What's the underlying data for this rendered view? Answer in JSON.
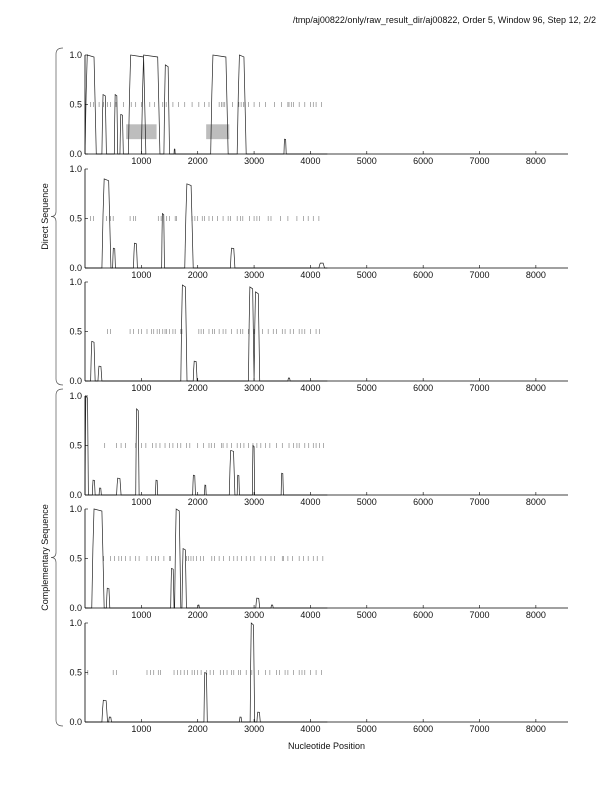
{
  "header": "/tmp/aj00822/only/raw_result_dir/aj00822, Order 5, Window 96, Step 12, 2/2",
  "chart_data": {
    "type": "line",
    "xlabel": "Nucleotide Position",
    "xlim": [
      0,
      8570
    ],
    "ylim": [
      0,
      1
    ],
    "x_ticks": [
      "1000",
      "2000",
      "3000",
      "4000",
      "5000",
      "6000",
      "7000",
      "8000"
    ],
    "y_ticks": [
      "0.0",
      "0.5",
      "1.0"
    ],
    "groups": [
      {
        "label": "Direct Sequence",
        "panels": [
          0,
          1,
          2
        ]
      },
      {
        "label": "Complementary Sequence",
        "panels": [
          3,
          4,
          5
        ]
      }
    ],
    "panels": [
      {
        "name": "direct-frame-1",
        "peaks": [
          [
            0,
            200,
            1.0
          ],
          [
            300,
            380,
            0.6
          ],
          [
            520,
            580,
            0.6
          ],
          [
            620,
            680,
            0.4
          ],
          [
            770,
            1080,
            1.0
          ],
          [
            1000,
            1330,
            1.0
          ],
          [
            1400,
            1500,
            0.9
          ],
          [
            1580,
            1600,
            0.05
          ],
          [
            2230,
            2540,
            1.0
          ],
          [
            2700,
            2860,
            1.0
          ],
          [
            3530,
            3570,
            0.15
          ]
        ],
        "stops": [
          100,
          150,
          250,
          330,
          400,
          450,
          550,
          680,
          820,
          900,
          1000,
          1150,
          1230,
          1380,
          1440,
          1560,
          1660,
          1770,
          1900,
          2020,
          2120,
          2200,
          2380,
          2420,
          2450,
          2480,
          2620,
          2730,
          2770,
          2810,
          2840,
          2900,
          3000,
          3100,
          3200,
          3360,
          3490,
          3600,
          3620,
          3660,
          3700,
          3800,
          3900,
          4000,
          4050,
          4100,
          4200
        ],
        "boxes": [
          [
            730,
            1270,
            0.15,
            0.3
          ],
          [
            2150,
            2560,
            0.15,
            0.3
          ]
        ]
      },
      {
        "name": "direct-frame-2",
        "peaks": [
          [
            300,
            460,
            0.9
          ],
          [
            490,
            540,
            0.2
          ],
          [
            860,
            930,
            0.25
          ],
          [
            1360,
            1410,
            0.55
          ],
          [
            1770,
            1920,
            0.85
          ],
          [
            2580,
            2660,
            0.2
          ],
          [
            4150,
            4250,
            0.05
          ]
        ],
        "stops": [
          100,
          150,
          380,
          450,
          500,
          800,
          860,
          900,
          1300,
          1350,
          1450,
          1500,
          1600,
          1620,
          1900,
          1950,
          2000,
          2080,
          2120,
          2200,
          2260,
          2350,
          2450,
          2540,
          2580,
          2700,
          2760,
          2800,
          2920,
          3000,
          3050,
          3100,
          3250,
          3300,
          3470,
          3600,
          3760,
          3880,
          3960,
          4050,
          4150
        ]
      },
      {
        "name": "direct-frame-3",
        "peaks": [
          [
            100,
            180,
            0.4
          ],
          [
            230,
            300,
            0.15
          ],
          [
            1700,
            1810,
            0.97
          ],
          [
            1920,
            1990,
            0.2
          ],
          [
            2900,
            3000,
            0.95
          ],
          [
            3000,
            3100,
            0.9
          ],
          [
            3600,
            3640,
            0.03
          ]
        ],
        "stops": [
          400,
          450,
          800,
          860,
          950,
          1000,
          1100,
          1180,
          1220,
          1280,
          1320,
          1380,
          1420,
          1450,
          1500,
          1560,
          1600,
          1700,
          1720,
          2020,
          2060,
          2100,
          2200,
          2260,
          2300,
          2380,
          2450,
          2500,
          2600,
          2700,
          2760,
          2800,
          2900,
          3000,
          3150,
          3250,
          3340,
          3400,
          3500,
          3550,
          3640,
          3700,
          3800,
          3850,
          3900,
          4000,
          4100,
          4160
        ]
      },
      {
        "name": "complementary-frame-1",
        "peaks": [
          [
            0,
            60,
            1.0
          ],
          [
            130,
            180,
            0.15
          ],
          [
            250,
            290,
            0.07
          ],
          [
            560,
            640,
            0.17
          ],
          [
            900,
            960,
            0.87
          ],
          [
            1250,
            1290,
            0.15
          ],
          [
            1910,
            1960,
            0.2
          ],
          [
            2120,
            2150,
            0.1
          ],
          [
            2560,
            2660,
            0.45
          ],
          [
            2700,
            2740,
            0.2
          ],
          [
            2970,
            3010,
            0.5
          ],
          [
            3480,
            3520,
            0.22
          ]
        ],
        "stops": [
          350,
          560,
          640,
          720,
          900,
          1000,
          1080,
          1200,
          1260,
          1330,
          1420,
          1500,
          1560,
          1640,
          1700,
          1800,
          1860,
          2000,
          2100,
          2200,
          2240,
          2300,
          2420,
          2450,
          2520,
          2600,
          2700,
          2760,
          2820,
          2900,
          2980,
          3050,
          3120,
          3200,
          3280,
          3400,
          3500,
          3620,
          3700,
          3760,
          3800,
          3900,
          3970,
          4050,
          4100,
          4160,
          4230
        ]
      },
      {
        "name": "complementary-frame-2",
        "peaks": [
          [
            120,
            340,
            1.0
          ],
          [
            380,
            440,
            0.2
          ],
          [
            1520,
            1580,
            0.4
          ],
          [
            1590,
            1700,
            1.0
          ],
          [
            1720,
            1800,
            0.6
          ],
          [
            2000,
            2030,
            0.03
          ],
          [
            3030,
            3100,
            0.1
          ],
          [
            3300,
            3340,
            0.03
          ]
        ],
        "stops": [
          330,
          450,
          520,
          600,
          650,
          720,
          800,
          900,
          960,
          1100,
          1180,
          1250,
          1300,
          1400,
          1500,
          1520,
          1800,
          1840,
          1880,
          1920,
          1980,
          2050,
          2100,
          2250,
          2300,
          2380,
          2460,
          2560,
          2640,
          2700,
          2780,
          2860,
          2940,
          3000,
          3120,
          3200,
          3300,
          3360,
          3500,
          3520,
          3600,
          3680,
          3800,
          3880,
          3960,
          4050,
          4120,
          4220
        ]
      },
      {
        "name": "complementary-frame-3",
        "peaks": [
          [
            300,
            400,
            0.22
          ],
          [
            420,
            470,
            0.05
          ],
          [
            2110,
            2170,
            0.5
          ],
          [
            2740,
            2780,
            0.05
          ],
          [
            2930,
            3010,
            1.0
          ],
          [
            3050,
            3110,
            0.1
          ]
        ],
        "stops": [
          50,
          500,
          560,
          1100,
          1160,
          1220,
          1300,
          1340,
          1580,
          1640,
          1700,
          1760,
          1820,
          1900,
          1940,
          2000,
          2060,
          2160,
          2220,
          2280,
          2400,
          2460,
          2520,
          2600,
          2640,
          2720,
          2760,
          2860,
          2960,
          3080,
          3200,
          3280,
          3400,
          3450,
          3550,
          3600,
          3700,
          3800,
          3850,
          3900,
          4000,
          4100,
          4200
        ]
      }
    ]
  }
}
